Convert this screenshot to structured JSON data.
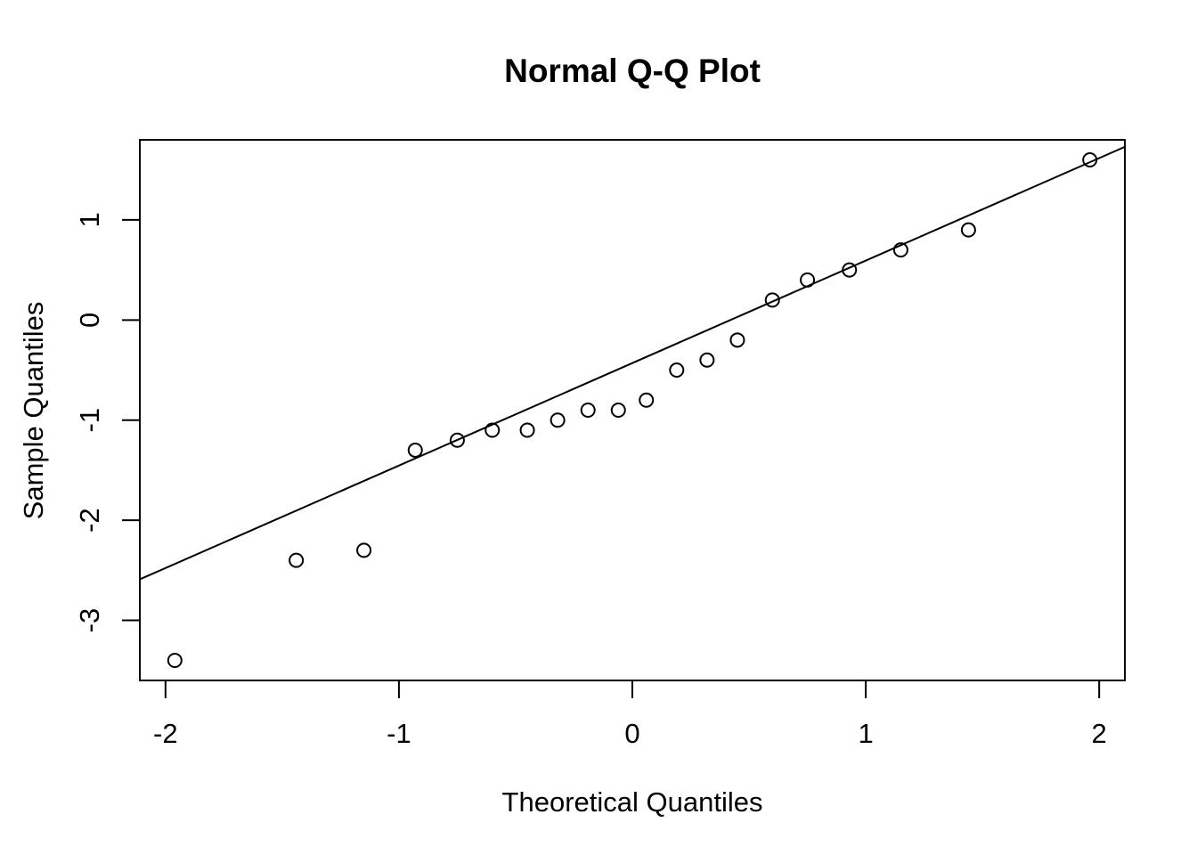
{
  "chart_data": {
    "type": "scatter",
    "title": "Normal Q-Q Plot",
    "xlabel": "Theoretical Quantiles",
    "ylabel": "Sample Quantiles",
    "xlim": [
      -2.11,
      2.11
    ],
    "ylim": [
      -3.6,
      1.8
    ],
    "x_ticks": [
      -2,
      -1,
      0,
      1,
      2
    ],
    "x_tick_labels": [
      "-2",
      "-1",
      "0",
      "1",
      "2"
    ],
    "y_ticks": [
      -3,
      -2,
      -1,
      0,
      1
    ],
    "y_tick_labels": [
      "-3",
      "-2",
      "-1",
      "0",
      "1"
    ],
    "grid": false,
    "series": [
      {
        "marker": "open-circle",
        "points": [
          {
            "x": -1.96,
            "y": -3.4
          },
          {
            "x": -1.44,
            "y": -2.4
          },
          {
            "x": -1.15,
            "y": -2.3
          },
          {
            "x": -0.93,
            "y": -1.3
          },
          {
            "x": -0.75,
            "y": -1.2
          },
          {
            "x": -0.6,
            "y": -1.1
          },
          {
            "x": -0.45,
            "y": -1.1
          },
          {
            "x": -0.32,
            "y": -1.0
          },
          {
            "x": -0.19,
            "y": -0.9
          },
          {
            "x": -0.06,
            "y": -0.9
          },
          {
            "x": 0.06,
            "y": -0.8
          },
          {
            "x": 0.19,
            "y": -0.5
          },
          {
            "x": 0.32,
            "y": -0.4
          },
          {
            "x": 0.45,
            "y": -0.2
          },
          {
            "x": 0.6,
            "y": 0.2
          },
          {
            "x": 0.75,
            "y": 0.4
          },
          {
            "x": 0.93,
            "y": 0.5
          },
          {
            "x": 1.15,
            "y": 0.7
          },
          {
            "x": 1.44,
            "y": 0.9
          },
          {
            "x": 1.96,
            "y": 1.6
          }
        ]
      }
    ],
    "reference_line": {
      "points": [
        {
          "x": -2.11,
          "y": -2.59
        },
        {
          "x": 2.11,
          "y": 1.73
        }
      ]
    }
  }
}
